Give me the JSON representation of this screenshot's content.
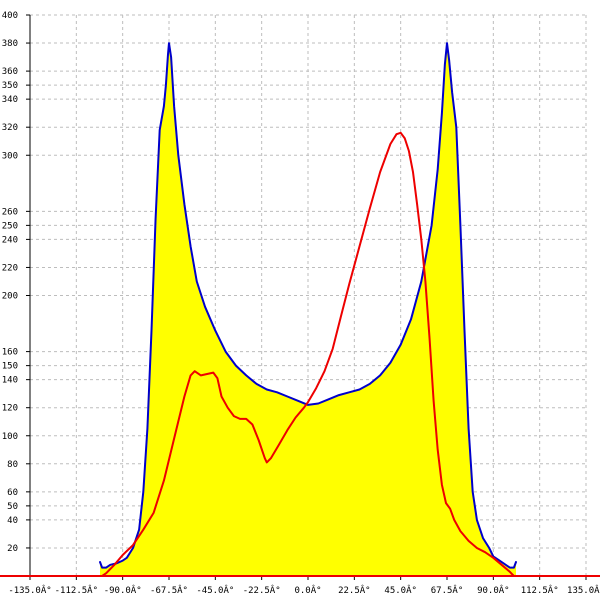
{
  "chart_data": {
    "type": "area",
    "title": "",
    "xlabel": "",
    "ylabel": "",
    "xlim": [
      -135,
      135
    ],
    "ylim": [
      0,
      400
    ],
    "grid": true,
    "x_ticks": [
      {
        "value": -135,
        "label": "-135.0Â°"
      },
      {
        "value": -112.5,
        "label": "-112.5Â°"
      },
      {
        "value": -90,
        "label": "-90.0Â°"
      },
      {
        "value": -67.5,
        "label": "-67.5Â°"
      },
      {
        "value": -45,
        "label": "-45.0Â°"
      },
      {
        "value": -22.5,
        "label": "-22.5Â°"
      },
      {
        "value": 0,
        "label": "0.0Â°"
      },
      {
        "value": 22.5,
        "label": "22.5Â°"
      },
      {
        "value": 45,
        "label": "45.0Â°"
      },
      {
        "value": 67.5,
        "label": "67.5Â°"
      },
      {
        "value": 90,
        "label": "90.0Â°"
      },
      {
        "value": 112.5,
        "label": "112.5Â°"
      },
      {
        "value": 135,
        "label": "135.0Â°"
      }
    ],
    "y_ticks": [
      {
        "value": 20,
        "label": "20"
      },
      {
        "value": 40,
        "label": "40"
      },
      {
        "value": 50,
        "label": "50"
      },
      {
        "value": 60,
        "label": "60"
      },
      {
        "value": 80,
        "label": "80"
      },
      {
        "value": 100,
        "label": "100"
      },
      {
        "value": 120,
        "label": "120"
      },
      {
        "value": 140,
        "label": "140"
      },
      {
        "value": 150,
        "label": "150"
      },
      {
        "value": 160,
        "label": "160"
      },
      {
        "value": 200,
        "label": "200"
      },
      {
        "value": 220,
        "label": "220"
      },
      {
        "value": 240,
        "label": "240"
      },
      {
        "value": 250,
        "label": "250"
      },
      {
        "value": 260,
        "label": "260"
      },
      {
        "value": 300,
        "label": "300"
      },
      {
        "value": 320,
        "label": "320"
      },
      {
        "value": 340,
        "label": "340"
      },
      {
        "value": 350,
        "label": "350"
      },
      {
        "value": 360,
        "label": "360"
      },
      {
        "value": 380,
        "label": "380"
      },
      {
        "value": 400,
        "label": "400"
      }
    ],
    "series": [
      {
        "color": "#0000cc",
        "fill": "#ffff00",
        "points": [
          [
            -101,
            10
          ],
          [
            -100,
            6
          ],
          [
            -98,
            6
          ],
          [
            -96,
            8
          ],
          [
            -93,
            9
          ],
          [
            -90,
            11
          ],
          [
            -88,
            13
          ],
          [
            -85,
            20
          ],
          [
            -82,
            33
          ],
          [
            -80,
            60
          ],
          [
            -78,
            105
          ],
          [
            -76,
            175
          ],
          [
            -74,
            255
          ],
          [
            -72,
            318
          ],
          [
            -70,
            335
          ],
          [
            -69,
            350
          ],
          [
            -68,
            372
          ],
          [
            -67.5,
            380
          ],
          [
            -66.5,
            370
          ],
          [
            -65,
            335
          ],
          [
            -63,
            300
          ],
          [
            -60,
            265
          ],
          [
            -57,
            235
          ],
          [
            -54,
            210
          ],
          [
            -50,
            192
          ],
          [
            -45,
            175
          ],
          [
            -40,
            160
          ],
          [
            -35,
            150
          ],
          [
            -30,
            143
          ],
          [
            -25,
            137
          ],
          [
            -20,
            133
          ],
          [
            -15,
            131
          ],
          [
            -10,
            128
          ],
          [
            -5,
            125
          ],
          [
            0,
            122
          ],
          [
            5,
            123
          ],
          [
            10,
            126
          ],
          [
            15,
            129
          ],
          [
            20,
            131
          ],
          [
            25,
            133
          ],
          [
            30,
            137
          ],
          [
            35,
            143
          ],
          [
            40,
            152
          ],
          [
            45,
            165
          ],
          [
            50,
            183
          ],
          [
            55,
            210
          ],
          [
            60,
            250
          ],
          [
            63,
            290
          ],
          [
            65,
            330
          ],
          [
            66.5,
            365
          ],
          [
            67.5,
            380
          ],
          [
            68.5,
            368
          ],
          [
            70,
            345
          ],
          [
            72,
            320
          ],
          [
            74,
            250
          ],
          [
            76,
            175
          ],
          [
            78,
            105
          ],
          [
            80,
            60
          ],
          [
            82,
            40
          ],
          [
            85,
            27
          ],
          [
            88,
            20
          ],
          [
            90,
            14
          ],
          [
            93,
            11
          ],
          [
            96,
            8
          ],
          [
            98,
            6
          ],
          [
            100,
            6
          ],
          [
            101,
            10
          ]
        ]
      },
      {
        "color": "#ee0000",
        "fill": "none",
        "points": [
          [
            -100,
            0
          ],
          [
            -98,
            2
          ],
          [
            -94,
            8
          ],
          [
            -90,
            15
          ],
          [
            -85,
            22
          ],
          [
            -80,
            33
          ],
          [
            -75,
            45
          ],
          [
            -70,
            68
          ],
          [
            -65,
            98
          ],
          [
            -60,
            128
          ],
          [
            -57,
            143
          ],
          [
            -55,
            146
          ],
          [
            -52,
            143
          ],
          [
            -49,
            144
          ],
          [
            -46,
            145
          ],
          [
            -44,
            141
          ],
          [
            -42,
            128
          ],
          [
            -39,
            120
          ],
          [
            -36,
            114
          ],
          [
            -33,
            112
          ],
          [
            -30,
            112
          ],
          [
            -27,
            108
          ],
          [
            -24,
            97
          ],
          [
            -21,
            84
          ],
          [
            -20,
            81
          ],
          [
            -18,
            84
          ],
          [
            -14,
            94
          ],
          [
            -10,
            104
          ],
          [
            -6,
            113
          ],
          [
            -2,
            120
          ],
          [
            0,
            124
          ],
          [
            4,
            134
          ],
          [
            8,
            146
          ],
          [
            12,
            162
          ],
          [
            16,
            185
          ],
          [
            20,
            208
          ],
          [
            25,
            235
          ],
          [
            30,
            262
          ],
          [
            35,
            288
          ],
          [
            40,
            308
          ],
          [
            43,
            315
          ],
          [
            45,
            316
          ],
          [
            47,
            312
          ],
          [
            49,
            303
          ],
          [
            51,
            288
          ],
          [
            53,
            265
          ],
          [
            55,
            240
          ],
          [
            57,
            210
          ],
          [
            59,
            170
          ],
          [
            61,
            125
          ],
          [
            63,
            90
          ],
          [
            65,
            65
          ],
          [
            67,
            52
          ],
          [
            69,
            48
          ],
          [
            71,
            40
          ],
          [
            74,
            32
          ],
          [
            78,
            25
          ],
          [
            82,
            20
          ],
          [
            86,
            17
          ],
          [
            90,
            13
          ],
          [
            94,
            8
          ],
          [
            98,
            3
          ],
          [
            100,
            0
          ]
        ]
      }
    ],
    "baseline_color": "#ee0000"
  }
}
